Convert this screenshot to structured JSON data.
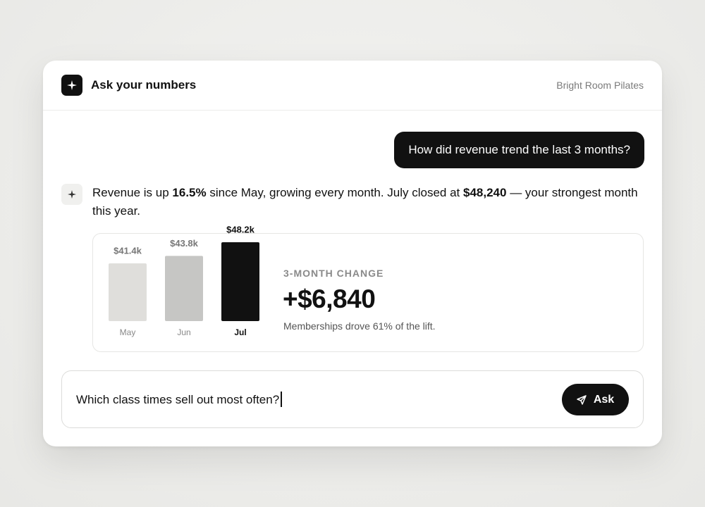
{
  "header": {
    "title": "Ask your numbers",
    "workspace": "Bright Room Pilates"
  },
  "conversation": {
    "question": "How did revenue trend the last 3 months?",
    "answer": [
      "Revenue is up ",
      "16.5%",
      " since May, growing every month. July closed at ",
      "$48,240",
      " — your strongest month this year."
    ]
  },
  "chart_data": {
    "type": "bar",
    "categories": [
      "May",
      "Jun",
      "Jul"
    ],
    "values": [
      41400,
      43800,
      48200
    ],
    "value_labels": [
      "$41.4k",
      "$43.8k",
      "$48.2k"
    ],
    "colors": [
      "#dfdedb",
      "#c6c6c4",
      "#111111"
    ],
    "ylim": [
      22800,
      48200
    ]
  },
  "summary": {
    "label": "3-MONTH CHANGE",
    "value": "+$6,840",
    "note": "Memberships drove 61% of the lift."
  },
  "composer": {
    "text": "Which class times sell out most often?",
    "button": "Ask"
  }
}
